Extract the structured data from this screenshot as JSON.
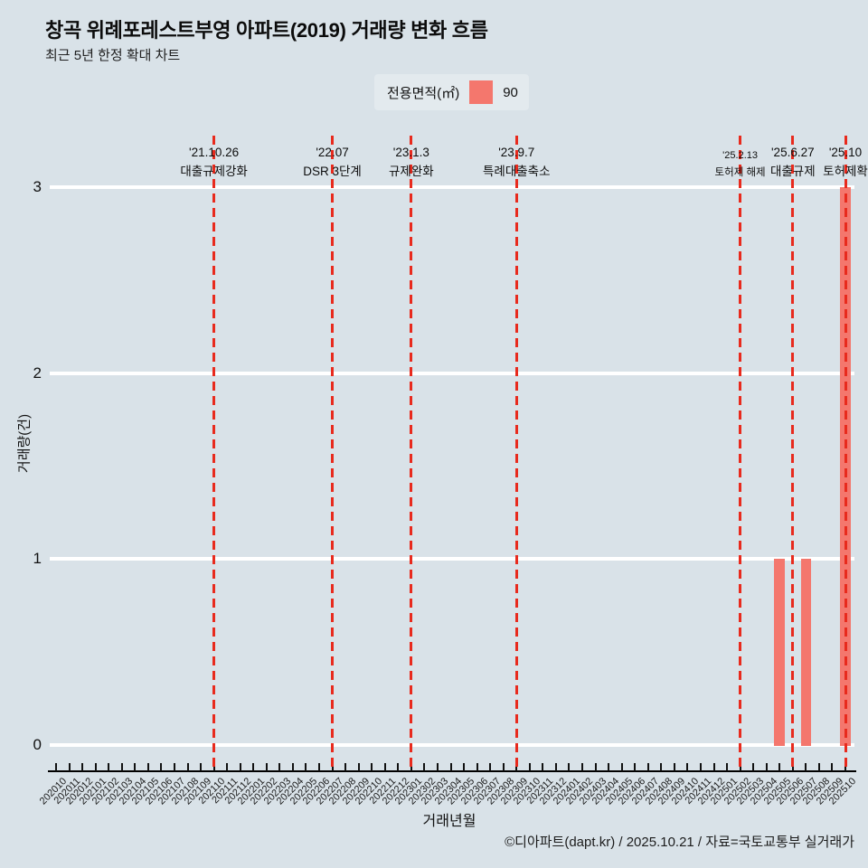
{
  "header": {
    "title": "창곡 위례포레스트부영 아파트(2019) 거래량 변화 흐름",
    "subtitle": "최근 5년 한정 확대 차트"
  },
  "legend": {
    "label": "전용면적(㎡)",
    "value": "90",
    "swatch_color": "#f4776d"
  },
  "chart_data": {
    "type": "bar",
    "title": "창곡 위례포레스트부영 아파트(2019) 거래량 변화 흐름",
    "xlabel": "거래년월",
    "ylabel": "거래량(건)",
    "ylim": [
      0,
      3
    ],
    "yticks": [
      0,
      1,
      2,
      3
    ],
    "grid": "horizontal-white",
    "legend_position": "top-center",
    "bar_color": "#f4776d",
    "event_line_color": "#e82a1d",
    "categories": [
      "202010",
      "202011",
      "202012",
      "202101",
      "202102",
      "202103",
      "202104",
      "202105",
      "202106",
      "202107",
      "202108",
      "202109",
      "202110",
      "202111",
      "202112",
      "202201",
      "202202",
      "202203",
      "202204",
      "202205",
      "202206",
      "202207",
      "202208",
      "202209",
      "202210",
      "202211",
      "202212",
      "202301",
      "202302",
      "202303",
      "202304",
      "202305",
      "202306",
      "202307",
      "202308",
      "202309",
      "202310",
      "202311",
      "202312",
      "202401",
      "202402",
      "202403",
      "202404",
      "202405",
      "202406",
      "202407",
      "202408",
      "202409",
      "202410",
      "202411",
      "202412",
      "202501",
      "202502",
      "202503",
      "202504",
      "202505",
      "202506",
      "202507",
      "202508",
      "202509",
      "202510"
    ],
    "values": [
      0,
      0,
      0,
      0,
      0,
      0,
      0,
      0,
      0,
      0,
      0,
      0,
      0,
      0,
      0,
      0,
      0,
      0,
      0,
      0,
      0,
      0,
      0,
      0,
      0,
      0,
      0,
      0,
      0,
      0,
      0,
      0,
      0,
      0,
      0,
      0,
      0,
      0,
      0,
      0,
      0,
      0,
      0,
      0,
      0,
      0,
      0,
      0,
      0,
      0,
      0,
      0,
      0,
      0,
      0,
      1,
      0,
      1,
      0,
      0,
      3
    ],
    "annotations": [
      {
        "month": "202110",
        "date": "'21.10.26",
        "label": "대출규제강화",
        "small": false
      },
      {
        "month": "202207",
        "date": "'22.07",
        "label": "DSR 3단계",
        "small": false
      },
      {
        "month": "202301",
        "date": "'23.1.3",
        "label": "규제완화",
        "small": false
      },
      {
        "month": "202309",
        "date": "'23.9.7",
        "label": "특례대출축소",
        "small": false
      },
      {
        "month": "202502",
        "date": "'25.2.13",
        "label": "토허제 해제",
        "small": true
      },
      {
        "month": "202506",
        "date": "'25.6.27",
        "label": "대출규제",
        "small": false
      },
      {
        "month": "202510",
        "date": "'25.10",
        "label": "토허제확",
        "small": false
      }
    ]
  },
  "footer": {
    "credit": "©디아파트(dapt.kr) / 2025.10.21 / 자료=국토교통부 실거래가"
  },
  "colors": {
    "background": "#d9e2e8",
    "bar": "#f4776d",
    "event_line": "#e82a1d",
    "gridline": "#ffffff"
  }
}
